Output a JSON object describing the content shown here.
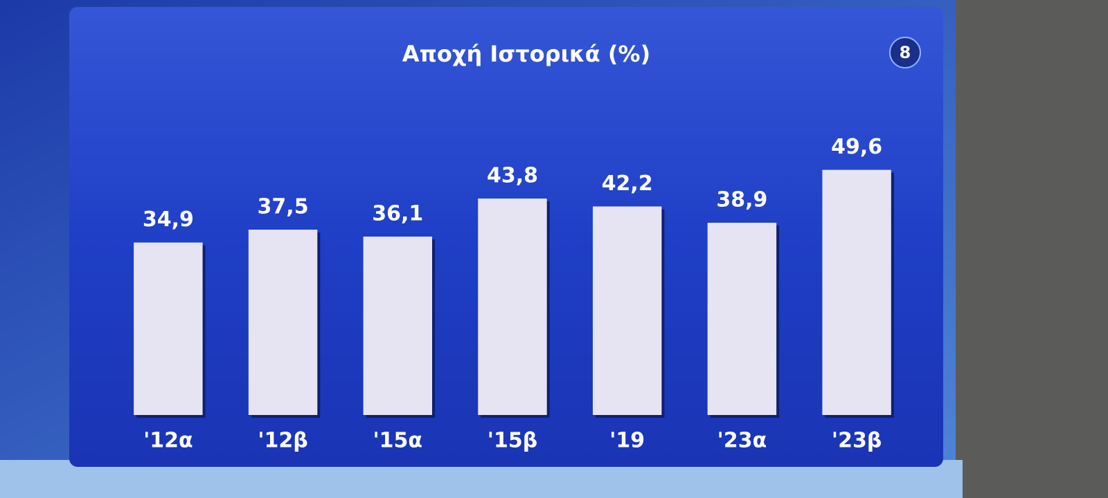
{
  "chart_data": {
    "type": "bar",
    "title": "Αποχή Ιστορικά (%)",
    "badge": "8",
    "categories": [
      "'12α",
      "'12β",
      "'15α",
      "'15β",
      "'19",
      "'23α",
      "'23β"
    ],
    "values": [
      34.9,
      37.5,
      36.1,
      43.8,
      42.2,
      38.9,
      49.6
    ],
    "value_labels": [
      "34,9",
      "37,5",
      "36,1",
      "43,8",
      "42,2",
      "38,9",
      "49,6"
    ],
    "color": "#e6e4f2",
    "ylim": [
      0,
      55
    ]
  }
}
